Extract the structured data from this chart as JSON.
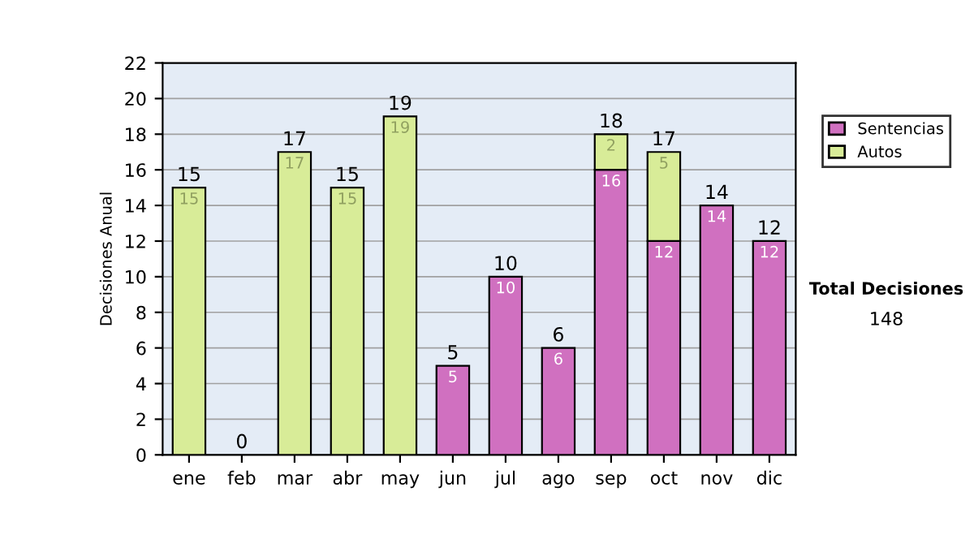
{
  "chart_data": {
    "type": "bar",
    "stacked": true,
    "ylabel": "Decisiones Anual",
    "categories": [
      "ene",
      "feb",
      "mar",
      "abr",
      "may",
      "jun",
      "jul",
      "ago",
      "sep",
      "oct",
      "nov",
      "dic"
    ],
    "series": [
      {
        "name": "Sentencias",
        "color": "#d070c0",
        "values": [
          0,
          0,
          0,
          0,
          0,
          5,
          10,
          6,
          16,
          12,
          14,
          12
        ],
        "value_labels": [
          null,
          null,
          null,
          null,
          null,
          "5",
          "10",
          "6",
          "16",
          "12",
          "14",
          "12"
        ]
      },
      {
        "name": "Autos",
        "color": "#d8ec98",
        "values": [
          15,
          0,
          17,
          15,
          19,
          0,
          0,
          0,
          2,
          5,
          0,
          0
        ],
        "value_labels": [
          "15",
          null,
          "17",
          "15",
          "19",
          null,
          null,
          null,
          "2",
          "5",
          null,
          null
        ]
      }
    ],
    "totals": [
      "15",
      "0",
      "17",
      "15",
      "19",
      "5",
      "10",
      "6",
      "18",
      "17",
      "14",
      "12"
    ],
    "ylim": [
      0,
      22
    ],
    "yticks": [
      0,
      2,
      4,
      6,
      8,
      10,
      12,
      14,
      16,
      18,
      20,
      22
    ],
    "grid": "y",
    "legend": "right",
    "annotations": [
      "Total Decisiones",
      "148"
    ]
  }
}
